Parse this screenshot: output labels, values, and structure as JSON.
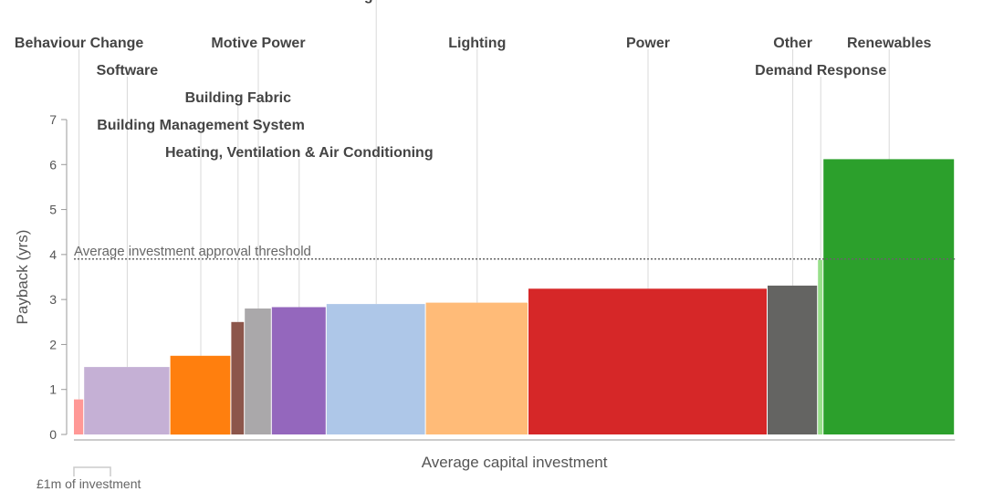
{
  "chart_data": {
    "type": "bar",
    "variable_width": true,
    "xlabel": "Average capital investment",
    "ylabel": "Payback (yrs)",
    "ylim": [
      0,
      7
    ],
    "yticks": [
      0,
      1,
      2,
      3,
      4,
      5,
      6,
      7
    ],
    "grid": false,
    "legend": "none",
    "threshold": {
      "value": 3.9,
      "label": "Average investment approval threshold"
    },
    "scale_key": {
      "label": "£1m of investment",
      "investment_m": 1
    },
    "categories": [
      {
        "name": "Behaviour Change",
        "investment_m": 0.28,
        "payback": 0.78,
        "color": "#ff9896"
      },
      {
        "name": "Software",
        "investment_m": 2.36,
        "payback": 1.5,
        "color": "#c5b0d5"
      },
      {
        "name": "Building Management System",
        "investment_m": 1.67,
        "payback": 1.75,
        "color": "#ff7f0e"
      },
      {
        "name": "Building Fabric",
        "investment_m": 0.37,
        "payback": 2.5,
        "color": "#8c564b"
      },
      {
        "name": "Motive Power",
        "investment_m": 0.74,
        "payback": 2.8,
        "color": "#aaa8aa"
      },
      {
        "name": "Heating, Ventilation & Air Conditioning",
        "investment_m": 1.5,
        "payback": 2.83,
        "color": "#9467bd"
      },
      {
        "name": "Refrigeration",
        "investment_m": 2.72,
        "payback": 2.9,
        "color": "#aec7e8"
      },
      {
        "name": "Lighting",
        "investment_m": 2.81,
        "payback": 2.93,
        "color": "#ffbb78"
      },
      {
        "name": "Power",
        "investment_m": 6.55,
        "payback": 3.24,
        "color": "#d62728"
      },
      {
        "name": "Other",
        "investment_m": 1.38,
        "payback": 3.31,
        "color": "#646462"
      },
      {
        "name": "Demand Response",
        "investment_m": 0.15,
        "payback": 3.88,
        "color": "#98df8a"
      },
      {
        "name": "Renewables",
        "investment_m": 3.6,
        "payback": 6.12,
        "color": "#2ca02c"
      }
    ]
  }
}
